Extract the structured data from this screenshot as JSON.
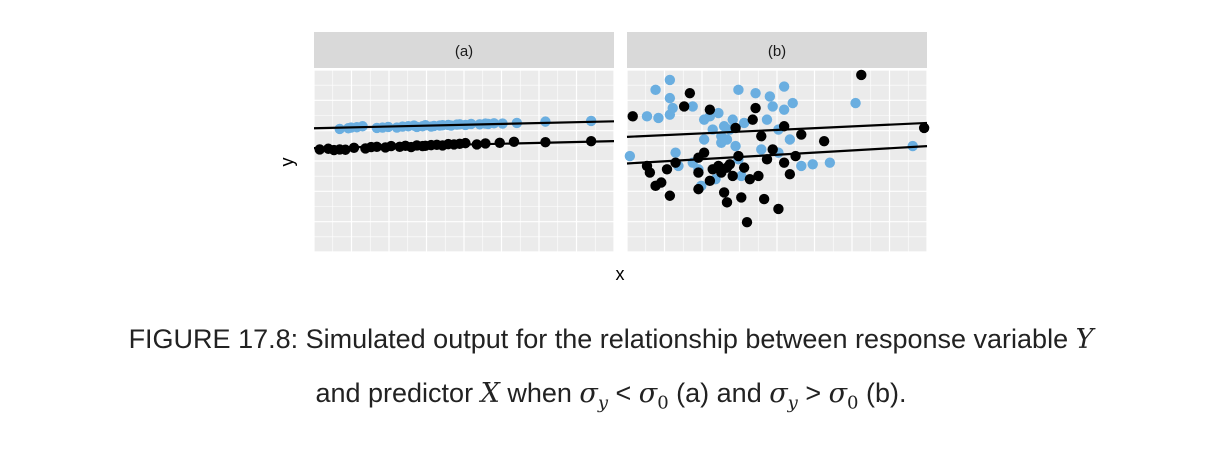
{
  "chart_data": {
    "type": "scatter",
    "xlabel": "x",
    "ylabel": "y",
    "xlim": [
      -0.05,
      1.0
    ],
    "ylim": [
      -3.2,
      2.3
    ],
    "grid": true,
    "colors": {
      "group_0": "#000000",
      "group_1": "#6aaee0",
      "line": "#000000",
      "panel_bg": "#ebebeb",
      "strip_bg": "#d9d9d9"
    },
    "panels": [
      {
        "label": "(a)",
        "lines": [
          {
            "group": "group_1",
            "intercept": 0.55,
            "slope": 0.2
          },
          {
            "group": "group_0",
            "intercept": -0.05,
            "slope": 0.2
          }
        ],
        "series": [
          {
            "group": "group_1",
            "x": [
              0.04,
              0.07,
              0.08,
              0.1,
              0.12,
              0.17,
              0.19,
              0.21,
              0.24,
              0.26,
              0.28,
              0.3,
              0.31,
              0.33,
              0.34,
              0.36,
              0.37,
              0.39,
              0.4,
              0.42,
              0.43,
              0.45,
              0.46,
              0.48,
              0.5,
              0.53,
              0.55,
              0.56,
              0.58,
              0.61,
              0.66,
              0.76,
              0.92
            ],
            "y": [
              0.52,
              0.54,
              0.56,
              0.57,
              0.6,
              0.55,
              0.56,
              0.58,
              0.56,
              0.59,
              0.6,
              0.62,
              0.58,
              0.6,
              0.63,
              0.59,
              0.61,
              0.62,
              0.63,
              0.64,
              0.62,
              0.65,
              0.66,
              0.64,
              0.67,
              0.66,
              0.68,
              0.67,
              0.69,
              0.68,
              0.7,
              0.74,
              0.76
            ]
          },
          {
            "group": "group_0",
            "x": [
              -0.03,
              0.0,
              0.02,
              0.04,
              0.06,
              0.09,
              0.13,
              0.15,
              0.17,
              0.2,
              0.22,
              0.25,
              0.27,
              0.29,
              0.31,
              0.33,
              0.34,
              0.36,
              0.38,
              0.4,
              0.42,
              0.44,
              0.46,
              0.48,
              0.52,
              0.55,
              0.6,
              0.65,
              0.76,
              0.92
            ],
            "y": [
              -0.1,
              -0.08,
              -0.12,
              -0.1,
              -0.11,
              -0.05,
              -0.07,
              -0.03,
              -0.02,
              -0.04,
              0.0,
              -0.02,
              0.01,
              -0.03,
              0.02,
              0.0,
              0.01,
              0.03,
              0.04,
              0.02,
              0.06,
              0.05,
              0.07,
              0.09,
              0.05,
              0.08,
              0.1,
              0.13,
              0.12,
              0.15
            ]
          }
        ]
      },
      {
        "label": "(b)",
        "lines": [
          {
            "group": "group_1",
            "intercept": 0.3,
            "slope": 0.4
          },
          {
            "group": "group_0",
            "intercept": -0.5,
            "slope": 0.5
          }
        ],
        "series": [
          {
            "group": "group_1",
            "x": [
              -0.04,
              0.02,
              0.05,
              0.06,
              0.1,
              0.1,
              0.11,
              0.1,
              0.13,
              0.12,
              0.18,
              0.2,
              0.21,
              0.22,
              0.24,
              0.25,
              0.26,
              0.27,
              0.28,
              0.28,
              0.29,
              0.3,
              0.31,
              0.32,
              0.33,
              0.34,
              0.35,
              0.36,
              0.4,
              0.42,
              0.44,
              0.46,
              0.48,
              0.48,
              0.5,
              0.5,
              0.52,
              0.53,
              0.56,
              0.6,
              0.66,
              0.75,
              0.95,
              0.18,
              0.34,
              0.22,
              0.45
            ],
            "y": [
              -0.3,
              0.9,
              1.7,
              0.85,
              1.45,
              0.95,
              1.15,
              2.0,
              -0.6,
              -0.2,
              1.2,
              -0.7,
              -1.2,
              0.2,
              0.9,
              0.5,
              -1.0,
              1.0,
              0.3,
              0.1,
              0.6,
              0.2,
              0.5,
              0.8,
              0.0,
              -0.4,
              -0.9,
              0.7,
              1.6,
              -0.1,
              0.8,
              1.2,
              0.5,
              -0.2,
              1.8,
              1.1,
              0.2,
              1.3,
              -0.6,
              -0.55,
              -0.5,
              1.3,
              0.0,
              -0.5,
              1.7,
              0.8,
              1.5
            ]
          },
          {
            "group": "group_0",
            "x": [
              -0.03,
              0.02,
              0.03,
              0.05,
              0.07,
              0.09,
              0.1,
              0.12,
              0.15,
              0.17,
              0.2,
              0.2,
              0.22,
              0.24,
              0.25,
              0.27,
              0.28,
              0.29,
              0.3,
              0.3,
              0.31,
              0.32,
              0.33,
              0.34,
              0.35,
              0.36,
              0.37,
              0.38,
              0.39,
              0.4,
              0.41,
              0.42,
              0.43,
              0.44,
              0.46,
              0.48,
              0.5,
              0.5,
              0.52,
              0.54,
              0.56,
              0.64,
              0.77,
              0.99,
              0.24,
              0.2
            ],
            "y": [
              0.9,
              -0.6,
              -0.8,
              -1.2,
              -1.1,
              -0.7,
              -1.5,
              -0.5,
              1.2,
              1.6,
              -0.8,
              -1.3,
              -0.2,
              -1.05,
              -0.7,
              -0.6,
              -0.8,
              -1.4,
              -1.7,
              -0.65,
              -0.55,
              -0.9,
              0.55,
              -0.3,
              -1.55,
              -0.65,
              -2.3,
              -1.0,
              0.8,
              1.15,
              -0.9,
              0.3,
              -1.6,
              -0.4,
              -0.1,
              -1.9,
              0.6,
              -0.5,
              -0.85,
              -0.3,
              0.35,
              0.15,
              2.15,
              0.55,
              1.1,
              -0.35
            ]
          }
        ]
      }
    ]
  },
  "caption": {
    "line1_text": "FIGURE 17.8: Simulated output for the relationship between response variable ",
    "line1_var": "Y",
    "line2_a": "and predictor ",
    "line2_var_x": "X",
    "line2_b": " when ",
    "sigma": "σ",
    "sub_y": "y",
    "lt": " < ",
    "sub_0": "0",
    "line2_c": " (a) and ",
    "gt": " > ",
    "line2_d": " (b)."
  }
}
